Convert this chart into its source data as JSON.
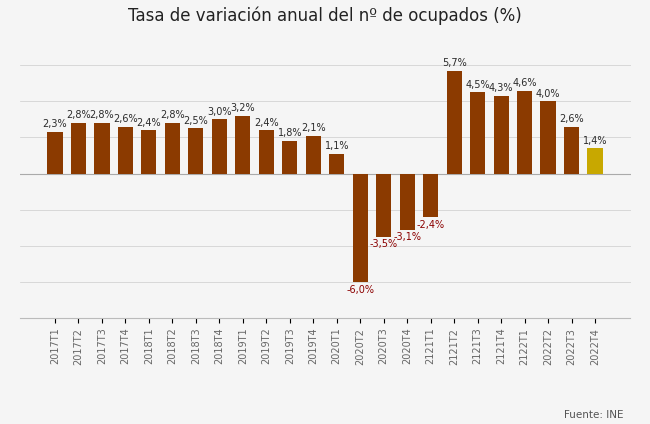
{
  "title": "Tasa de variación anual del nº de ocupados (%)",
  "categories": [
    "2017T1",
    "2017T2",
    "2017T3",
    "2017T4",
    "2018T1",
    "2018T2",
    "2018T3",
    "2018T4",
    "2019T1",
    "2019T2",
    "2019T3",
    "2019T4",
    "2020T1",
    "2020T2",
    "2020T3",
    "2020T4",
    "2121T1",
    "2121T2",
    "2121T3",
    "2121T4",
    "2122T1",
    "2022T2",
    "2022T3",
    "2022T4"
  ],
  "values": [
    2.3,
    2.8,
    2.8,
    2.6,
    2.4,
    2.8,
    2.5,
    3.0,
    3.2,
    2.4,
    1.8,
    2.1,
    1.1,
    -6.0,
    -3.5,
    -3.1,
    -2.4,
    5.7,
    4.5,
    4.3,
    4.6,
    4.0,
    2.6,
    1.4
  ],
  "bar_color_default": "#8B3A00",
  "bar_color_last": "#C8A800",
  "label_color_negative": "#8B0000",
  "label_color_positive": "#2b2b2b",
  "background_color": "#f5f5f5",
  "source_text": "Fuente: INE",
  "title_fontsize": 12,
  "label_fontsize": 7,
  "tick_fontsize": 7,
  "ylim_min": -8.0,
  "ylim_max": 7.5,
  "bar_width": 0.65
}
